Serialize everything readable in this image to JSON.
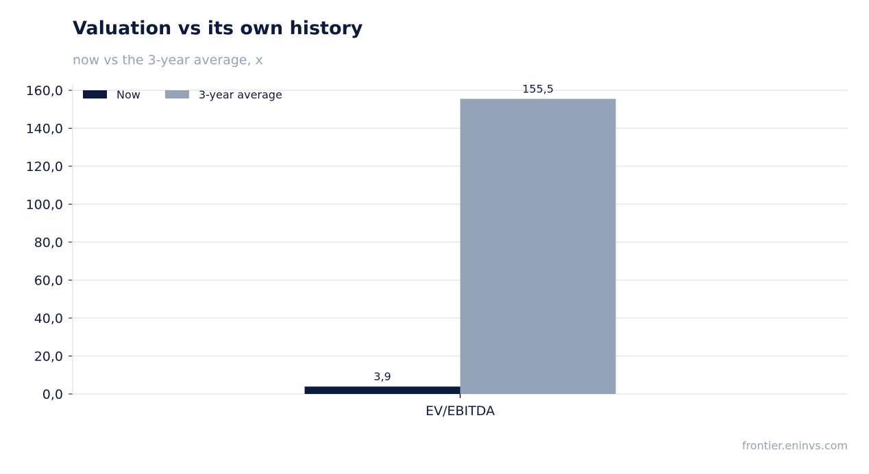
{
  "header": {
    "title": "Valuation vs its own history",
    "subtitle": "now vs the 3-year average, x"
  },
  "footer": {
    "source": "frontier.eninvs.com"
  },
  "colors": {
    "now": "#0d1a3f",
    "average": "#94a3b8",
    "grid": "#e2e8f0"
  },
  "chart_data": {
    "type": "bar",
    "categories": [
      "EV/EBITDA"
    ],
    "series": [
      {
        "name": "Now",
        "values": [
          3.9
        ],
        "labels": [
          "3,9"
        ]
      },
      {
        "name": "3-year average",
        "values": [
          155.5
        ],
        "labels": [
          "155,5"
        ]
      }
    ],
    "ylim": [
      0,
      160
    ],
    "yticks": [
      0,
      20,
      40,
      60,
      80,
      100,
      120,
      140,
      160
    ],
    "ytick_labels": [
      "0,0",
      "20,0",
      "40,0",
      "60,0",
      "80,0",
      "100,0",
      "120,0",
      "140,0",
      "160,0"
    ],
    "grid": true,
    "legend": "top-left"
  }
}
